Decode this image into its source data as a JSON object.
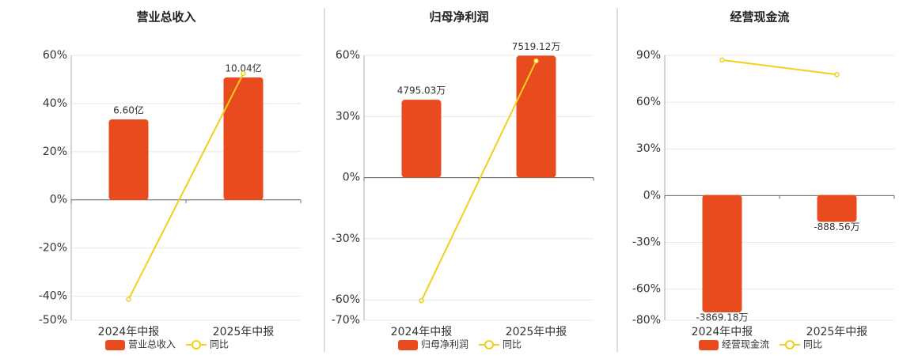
{
  "chart_data": [
    {
      "type": "combo",
      "title": "营业总收入",
      "categories": [
        "2024年中报",
        "2025年中报"
      ],
      "series": [
        {
          "name": "营业总收入",
          "color": "#e84c1e",
          "axis": "y2",
          "values": [
            6.6,
            10.04
          ],
          "value_labels": [
            "6.60亿",
            "10.04亿"
          ]
        },
        {
          "name": "同比",
          "color": "#f2cf1c",
          "values": [
            -41.3,
            52.5
          ]
        }
      ],
      "ylim": [
        -50,
        60
      ],
      "yticks": [
        {
          "value": -50,
          "label": "-50%"
        },
        {
          "value": -40,
          "label": "-40%"
        },
        {
          "value": -20,
          "label": "-20%"
        },
        {
          "value": 0,
          "label": "0%"
        },
        {
          "value": 20,
          "label": "20%"
        },
        {
          "value": 40,
          "label": "40%"
        },
        {
          "value": 60,
          "label": "60%"
        }
      ],
      "y2lim": [
        -9.84,
        11.84
      ],
      "grid": true
    },
    {
      "type": "combo",
      "title": "归母净利润",
      "categories": [
        "2024年中报",
        "2025年中报"
      ],
      "series": [
        {
          "name": "归母净利润",
          "color": "#e84c1e",
          "axis": "y2",
          "values": [
            4795.03,
            7519.12
          ],
          "value_labels": [
            "4795.03万",
            "7519.12万"
          ]
        },
        {
          "name": "同比",
          "color": "#f2cf1c",
          "values": [
            -60.4,
            57.3
          ]
        }
      ],
      "ylim": [
        -70,
        60
      ],
      "yticks": [
        {
          "value": -70,
          "label": "-70%"
        },
        {
          "value": -60,
          "label": "-60%"
        },
        {
          "value": -30,
          "label": "-30%"
        },
        {
          "value": 0,
          "label": "0%"
        },
        {
          "value": 30,
          "label": "30%"
        },
        {
          "value": 60,
          "label": "60%"
        }
      ],
      "y2lim": [
        -8807,
        7535
      ],
      "grid": true
    },
    {
      "type": "combo",
      "title": "经营现金流",
      "categories": [
        "2024年中报",
        "2025年中报"
      ],
      "series": [
        {
          "name": "经营现金流",
          "color": "#e84c1e",
          "axis": "y2",
          "values": [
            -3869.18,
            -888.56
          ],
          "value_labels": [
            "-3869.18万",
            "-888.56万"
          ]
        },
        {
          "name": "同比",
          "color": "#f2cf1c",
          "values": [
            87,
            77.7
          ]
        }
      ],
      "ylim": [
        -80,
        90
      ],
      "yticks": [
        {
          "value": -80,
          "label": "-80%"
        },
        {
          "value": -60,
          "label": "-60%"
        },
        {
          "value": -30,
          "label": "-30%"
        },
        {
          "value": 0,
          "label": "0%"
        },
        {
          "value": 30,
          "label": "30%"
        },
        {
          "value": 60,
          "label": "60%"
        },
        {
          "value": 90,
          "label": "90%"
        }
      ],
      "y2lim": [
        -4130,
        4600
      ],
      "grid": true
    }
  ]
}
